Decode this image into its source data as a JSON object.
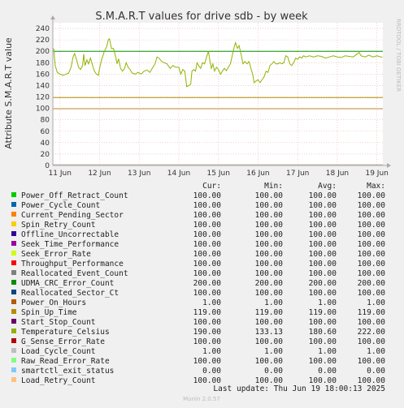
{
  "chart_data": {
    "type": "line",
    "title": "S.M.A.R.T values for drive sdb - by week",
    "ylabel": "Attribute S.M.A.R.T value",
    "ylim": [
      0,
      250
    ],
    "yticks": [
      0,
      20,
      40,
      60,
      80,
      100,
      120,
      140,
      160,
      180,
      200,
      220,
      240
    ],
    "xticks": [
      "11 Jun",
      "12 Jun",
      "13 Jun",
      "14 Jun",
      "15 Jun",
      "16 Jun",
      "17 Jun",
      "18 Jun",
      "19 Jun"
    ],
    "xlim_days": [
      10.82,
      19.15
    ],
    "grid": true,
    "side_label": "RRDTOOL / TOBI OETIKER",
    "columns": [
      "Cur:",
      "Min:",
      "Avg:",
      "Max:"
    ],
    "series": [
      {
        "name": "Power_Off_Retract_Count",
        "color": "#00cc00",
        "cur": "100.00",
        "min": "100.00",
        "avg": "100.00",
        "max": "100.00",
        "constant": 100
      },
      {
        "name": "Power_Cycle_Count",
        "color": "#0066b3",
        "cur": "100.00",
        "min": "100.00",
        "avg": "100.00",
        "max": "100.00",
        "constant": 100
      },
      {
        "name": "Current_Pending_Sector",
        "color": "#ff8000",
        "cur": "100.00",
        "min": "100.00",
        "avg": "100.00",
        "max": "100.00",
        "constant": 100
      },
      {
        "name": "Spin_Retry_Count",
        "color": "#ffcc00",
        "cur": "100.00",
        "min": "100.00",
        "avg": "100.00",
        "max": "100.00",
        "constant": 100
      },
      {
        "name": "Offline_Uncorrectable",
        "color": "#330099",
        "cur": "100.00",
        "min": "100.00",
        "avg": "100.00",
        "max": "100.00",
        "constant": 100
      },
      {
        "name": "Seek_Time_Performance",
        "color": "#990099",
        "cur": "100.00",
        "min": "100.00",
        "avg": "100.00",
        "max": "100.00",
        "constant": 100
      },
      {
        "name": "Seek_Error_Rate",
        "color": "#ccff00",
        "cur": "100.00",
        "min": "100.00",
        "avg": "100.00",
        "max": "100.00",
        "constant": 100
      },
      {
        "name": "Throughput_Performance",
        "color": "#ff0000",
        "cur": "100.00",
        "min": "100.00",
        "avg": "100.00",
        "max": "100.00",
        "constant": 100
      },
      {
        "name": "Reallocated_Event_Count",
        "color": "#808080",
        "cur": "100.00",
        "min": "100.00",
        "avg": "100.00",
        "max": "100.00",
        "constant": 100
      },
      {
        "name": "UDMA_CRC_Error_Count",
        "color": "#008f00",
        "cur": "200.00",
        "min": "200.00",
        "avg": "200.00",
        "max": "200.00",
        "constant": 200
      },
      {
        "name": "Reallocated_Sector_Ct",
        "color": "#00487d",
        "cur": "100.00",
        "min": "100.00",
        "avg": "100.00",
        "max": "100.00",
        "constant": 100
      },
      {
        "name": "Power_On_Hours",
        "color": "#b35a00",
        "cur": "1.00",
        "min": "1.00",
        "avg": "1.00",
        "max": "1.00",
        "constant": 1
      },
      {
        "name": "Spin_Up_Time",
        "color": "#b38f00",
        "cur": "119.00",
        "min": "119.00",
        "avg": "119.00",
        "max": "119.00",
        "constant": 119
      },
      {
        "name": "Start_Stop_Count",
        "color": "#6b006b",
        "cur": "100.00",
        "min": "100.00",
        "avg": "100.00",
        "max": "100.00",
        "constant": 100
      },
      {
        "name": "Temperature_Celsius",
        "color": "#8fb300",
        "cur": "190.00",
        "min": "133.13",
        "avg": "180.60",
        "max": "222.00",
        "points": [
          [
            10.84,
            205
          ],
          [
            10.88,
            175
          ],
          [
            10.93,
            163
          ],
          [
            11.0,
            160
          ],
          [
            11.08,
            158
          ],
          [
            11.15,
            160
          ],
          [
            11.22,
            162
          ],
          [
            11.28,
            172
          ],
          [
            11.33,
            190
          ],
          [
            11.37,
            196
          ],
          [
            11.42,
            185
          ],
          [
            11.47,
            172
          ],
          [
            11.52,
            168
          ],
          [
            11.57,
            175
          ],
          [
            11.6,
            195
          ],
          [
            11.63,
            175
          ],
          [
            11.68,
            185
          ],
          [
            11.72,
            178
          ],
          [
            11.77,
            188
          ],
          [
            11.82,
            176
          ],
          [
            11.87,
            165
          ],
          [
            11.92,
            160
          ],
          [
            11.97,
            158
          ],
          [
            12.0,
            170
          ],
          [
            12.05,
            185
          ],
          [
            12.12,
            200
          ],
          [
            12.18,
            208
          ],
          [
            12.22,
            220
          ],
          [
            12.25,
            222
          ],
          [
            12.3,
            205
          ],
          [
            12.35,
            205
          ],
          [
            12.4,
            192
          ],
          [
            12.44,
            178
          ],
          [
            12.48,
            187
          ],
          [
            12.53,
            170
          ],
          [
            12.58,
            165
          ],
          [
            12.63,
            170
          ],
          [
            12.67,
            180
          ],
          [
            12.72,
            172
          ],
          [
            12.77,
            168
          ],
          [
            12.82,
            162
          ],
          [
            12.9,
            160
          ],
          [
            12.97,
            163
          ],
          [
            13.05,
            160
          ],
          [
            13.12,
            165
          ],
          [
            13.2,
            167
          ],
          [
            13.27,
            163
          ],
          [
            13.33,
            170
          ],
          [
            13.4,
            178
          ],
          [
            13.45,
            190
          ],
          [
            13.5,
            188
          ],
          [
            13.57,
            182
          ],
          [
            13.63,
            180
          ],
          [
            13.7,
            178
          ],
          [
            13.78,
            170
          ],
          [
            13.85,
            175
          ],
          [
            13.92,
            172
          ],
          [
            14.0,
            172
          ],
          [
            14.05,
            160
          ],
          [
            14.1,
            168
          ],
          [
            14.15,
            165
          ],
          [
            14.2,
            138
          ],
          [
            14.25,
            140
          ],
          [
            14.3,
            142
          ],
          [
            14.33,
            165
          ],
          [
            14.38,
            168
          ],
          [
            14.42,
            165
          ],
          [
            14.46,
            180
          ],
          [
            14.5,
            175
          ],
          [
            14.55,
            170
          ],
          [
            14.6,
            180
          ],
          [
            14.65,
            178
          ],
          [
            14.7,
            190
          ],
          [
            14.75,
            200
          ],
          [
            14.78,
            185
          ],
          [
            14.82,
            170
          ],
          [
            14.86,
            178
          ],
          [
            14.9,
            165
          ],
          [
            14.95,
            172
          ],
          [
            15.0,
            168
          ],
          [
            15.05,
            160
          ],
          [
            15.1,
            165
          ],
          [
            15.15,
            170
          ],
          [
            15.2,
            166
          ],
          [
            15.25,
            172
          ],
          [
            15.3,
            178
          ],
          [
            15.35,
            193
          ],
          [
            15.4,
            208
          ],
          [
            15.43,
            215
          ],
          [
            15.48,
            205
          ],
          [
            15.52,
            210
          ],
          [
            15.57,
            195
          ],
          [
            15.62,
            178
          ],
          [
            15.67,
            182
          ],
          [
            15.72,
            178
          ],
          [
            15.77,
            182
          ],
          [
            15.82,
            170
          ],
          [
            15.87,
            158
          ],
          [
            15.9,
            145
          ],
          [
            15.95,
            148
          ],
          [
            16.0,
            150
          ],
          [
            16.05,
            145
          ],
          [
            16.1,
            150
          ],
          [
            16.15,
            155
          ],
          [
            16.2,
            165
          ],
          [
            16.25,
            163
          ],
          [
            16.3,
            175
          ],
          [
            16.35,
            178
          ],
          [
            16.4,
            182
          ],
          [
            16.45,
            178
          ],
          [
            16.5,
            178
          ],
          [
            16.55,
            180
          ],
          [
            16.6,
            178
          ],
          [
            16.65,
            180
          ],
          [
            16.7,
            192
          ],
          [
            16.75,
            190
          ],
          [
            16.8,
            178
          ],
          [
            16.85,
            175
          ],
          [
            16.9,
            180
          ],
          [
            16.95,
            188
          ],
          [
            17.0,
            186
          ],
          [
            17.05,
            190
          ],
          [
            17.1,
            188
          ],
          [
            17.15,
            192
          ],
          [
            17.2,
            190
          ],
          [
            17.3,
            192
          ],
          [
            17.4,
            190
          ],
          [
            17.5,
            192
          ],
          [
            17.6,
            191
          ],
          [
            17.7,
            188
          ],
          [
            17.8,
            190
          ],
          [
            17.9,
            192
          ],
          [
            18.0,
            190
          ],
          [
            18.1,
            189
          ],
          [
            18.2,
            192
          ],
          [
            18.3,
            191
          ],
          [
            18.4,
            190
          ],
          [
            18.5,
            195
          ],
          [
            18.55,
            198
          ],
          [
            18.6,
            192
          ],
          [
            18.7,
            190
          ],
          [
            18.8,
            193
          ],
          [
            18.9,
            190
          ],
          [
            19.0,
            192
          ],
          [
            19.1,
            190
          ],
          [
            19.14,
            190
          ]
        ]
      },
      {
        "name": "G_Sense_Error_Rate",
        "color": "#b30000",
        "cur": "100.00",
        "min": "100.00",
        "avg": "100.00",
        "max": "100.00",
        "constant": 100
      },
      {
        "name": "Load_Cycle_Count",
        "color": "#bebebe",
        "cur": "1.00",
        "min": "1.00",
        "avg": "1.00",
        "max": "1.00",
        "constant": 1
      },
      {
        "name": "Raw_Read_Error_Rate",
        "color": "#80ff80",
        "cur": "100.00",
        "min": "100.00",
        "avg": "100.00",
        "max": "100.00",
        "constant": 100
      },
      {
        "name": "smartctl_exit_status",
        "color": "#80c9ff",
        "cur": "0.00",
        "min": "0.00",
        "avg": "0.00",
        "max": "0.00",
        "constant": 0
      },
      {
        "name": "Load_Retry_Count",
        "color": "#ffc080",
        "cur": "100.00",
        "min": "100.00",
        "avg": "100.00",
        "max": "100.00",
        "constant": 100
      }
    ]
  },
  "last_update": "Last update: Thu Jun 19 18:00:13 2025",
  "footer": "Munin 2.0.57"
}
